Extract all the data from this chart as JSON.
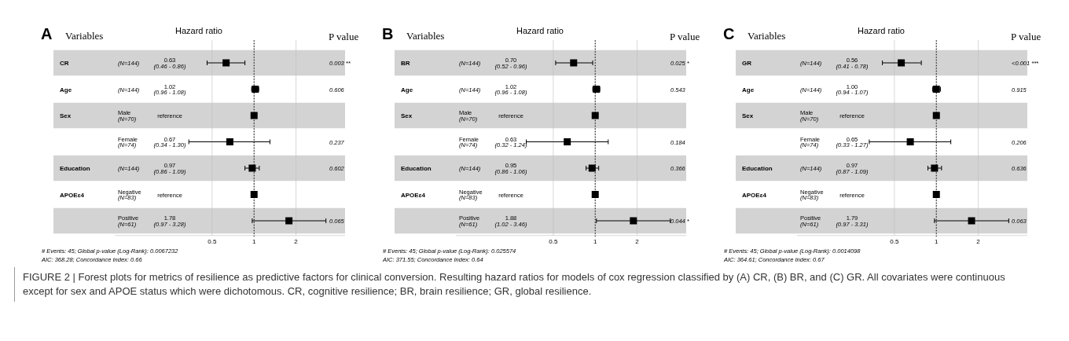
{
  "chart_data": [
    {
      "type": "scatter",
      "orientation": "horizontal",
      "title": "A",
      "xlabel": "Hazard ratio",
      "ylabel": "Variables",
      "y2label": "P value",
      "log": "x",
      "grid": "x",
      "marker": "square",
      "xlim": [
        0.1,
        4.5
      ],
      "xticks": [
        0.5,
        1,
        2
      ],
      "categories": [
        "CR",
        "Age",
        "Sex",
        null,
        "Education",
        "APOEε4",
        null
      ],
      "y_categories": [
        "(N=144)",
        "(N=144)",
        "Male (N=70)",
        "Female (N=74)",
        "(N=144)",
        "Negative (N=83)",
        "Positive (N=61)"
      ],
      "y2_categories": [
        "0.003 **",
        "0.606",
        null,
        "0.237",
        "0.602",
        null,
        "0.065"
      ],
      "values": [
        0.63,
        1.02,
        1,
        0.67,
        0.97,
        1,
        1.78
      ],
      "errors": [
        [
          0.46,
          0.86
        ],
        [
          0.96,
          1.08
        ],
        null,
        [
          0.34,
          1.3
        ],
        [
          0.86,
          1.09
        ],
        null,
        [
          0.97,
          3.28
        ]
      ],
      "color": "#000000",
      "ref_lines": [
        {
          "axis": "x",
          "value": 1,
          "line_style": "dotted"
        }
      ],
      "annotations": [
        "# Events: 45; Global p-value (Log-Rank): 0.0067232",
        "AIC: 368.28; Concordance Index: 0.66",
        "0.63 (0.46 - 0.86)",
        "1.02 (0.96 - 1.08)",
        "reference",
        "0.67 (0.34 - 1.30)",
        "0.97 (0.86 - 1.09)",
        "reference",
        "1.78 (0.97 - 3.28)",
        "FIGURE 2 | Forest plots for metrics of resilience as predictive factors for clinical conversion. Resulting hazard ratios for models of cox regression classified by (A) CR, (B) BR, and (C) GR. All covariates were continuous except for sex and APOE status which were dichotomous. CR, cognitive resilience; BR, brain resilience; GR, global resilience."
      ]
    },
    {
      "type": "scatter",
      "orientation": "horizontal",
      "title": "B",
      "xlabel": "Hazard ratio",
      "ylabel": "Variables",
      "y2label": "P value",
      "log": "x",
      "grid": "x",
      "marker": "square",
      "xlim": [
        0.1,
        4.5
      ],
      "xticks": [
        0.5,
        1,
        2
      ],
      "categories": [
        "BR",
        "Age",
        "Sex",
        null,
        "Education",
        "APOEε4",
        null
      ],
      "y_categories": [
        "(N=144)",
        "(N=144)",
        "Male (N=70)",
        "Female (N=74)",
        "(N=144)",
        "Negative (N=83)",
        "Positive (N=61)"
      ],
      "y2_categories": [
        "0.025 *",
        "0.543",
        null,
        "0.184",
        "0.366",
        null,
        "0.044 *"
      ],
      "values": [
        0.7,
        1.02,
        1,
        0.63,
        0.95,
        1,
        1.88
      ],
      "errors": [
        [
          0.52,
          0.96
        ],
        [
          0.96,
          1.08
        ],
        null,
        [
          0.32,
          1.24
        ],
        [
          0.86,
          1.06
        ],
        null,
        [
          1.02,
          3.46
        ]
      ],
      "color": "#000000",
      "ref_lines": [
        {
          "axis": "x",
          "value": 1,
          "line_style": "dotted"
        }
      ],
      "annotations": [
        "# Events: 45; Global p-value (Log-Rank): 0.025574",
        "AIC: 371.55; Concordance Index: 0.64",
        "0.70 (0.52 - 0.96)",
        "1.02 (0.96 - 1.08)",
        "reference",
        "0.63 (0.32 - 1.24)",
        "0.95 (0.86 - 1.06)",
        "reference",
        "1.88 (1.02 - 3.46)"
      ]
    },
    {
      "type": "scatter",
      "orientation": "horizontal",
      "title": "C",
      "xlabel": "Hazard ratio",
      "ylabel": "Variables",
      "y2label": "P value",
      "log": "x",
      "grid": "x",
      "marker": "square",
      "xlim": [
        0.1,
        4.5
      ],
      "xticks": [
        0.5,
        1,
        2
      ],
      "categories": [
        "GR",
        "Age",
        "Sex",
        null,
        "Education",
        "APOEε4",
        null
      ],
      "y_categories": [
        "(N=144)",
        "(N=144)",
        "Male (N=70)",
        "Female (N=74)",
        "(N=144)",
        "Negative (N=83)",
        "Positive (N=61)"
      ],
      "y2_categories": [
        "<0.001 ***",
        "0.915",
        null,
        "0.206",
        "0.636",
        null,
        "0.063"
      ],
      "values": [
        0.56,
        1.0,
        1,
        0.65,
        0.97,
        1,
        1.79
      ],
      "errors": [
        [
          0.41,
          0.78
        ],
        [
          0.94,
          1.07
        ],
        null,
        [
          0.33,
          1.27
        ],
        [
          0.87,
          1.09
        ],
        null,
        [
          0.97,
          3.31
        ]
      ],
      "color": "#000000",
      "ref_lines": [
        {
          "axis": "x",
          "value": 1,
          "line_style": "dotted"
        }
      ],
      "annotations": [
        "# Events: 45; Global p-value (Log-Rank): 0.0014098",
        "AIC: 364.61; Concordance Index: 0.67",
        "0.56 (0.41 - 0.78)",
        "1.00 (0.94 - 1.07)",
        "reference",
        "0.65 (0.33 - 1.27)",
        "0.97 (0.87 - 1.09)",
        "reference",
        "1.79 (0.97 - 3.31)"
      ]
    }
  ]
}
